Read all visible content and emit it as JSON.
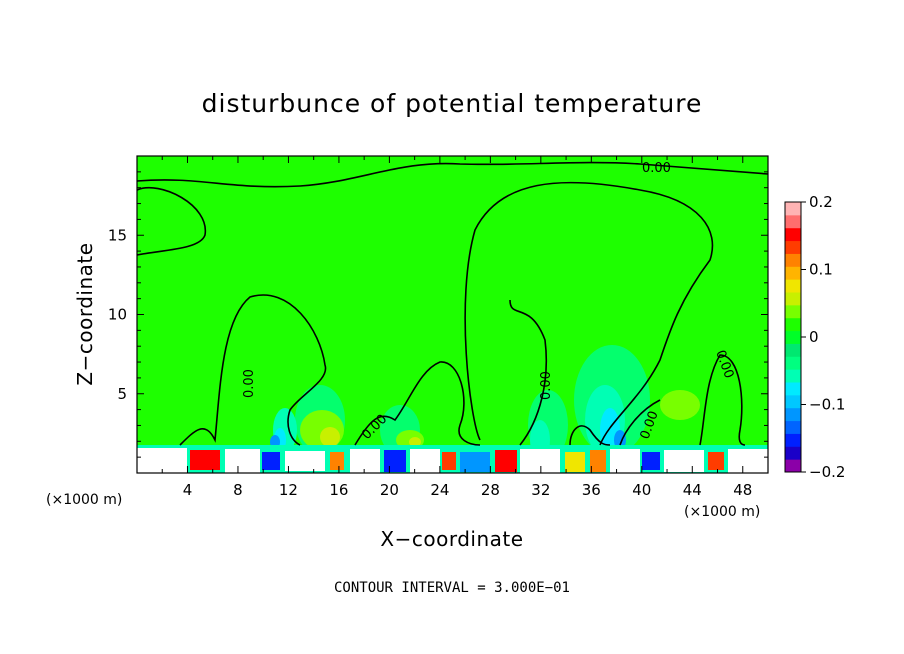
{
  "chart_data": {
    "type": "heatmap",
    "title": "disturbunce of potential temperature",
    "xlabel": "X−coordinate",
    "ylabel": "Z−coordinate",
    "x_unit_label": "(×1000 m)",
    "y_unit_label": "(×1000 m)",
    "xlim": [
      0,
      50
    ],
    "ylim": [
      0,
      20
    ],
    "x_ticks": [
      4,
      8,
      12,
      16,
      20,
      24,
      28,
      32,
      36,
      40,
      44,
      48
    ],
    "y_ticks": [
      5,
      10,
      15
    ],
    "colorbar": {
      "ticks": [
        {
          "value": 0.2,
          "label": "0.2"
        },
        {
          "value": 0.1,
          "label": "0.1"
        },
        {
          "value": 0,
          "label": "0"
        },
        {
          "value": -0.1,
          "label": "−0.1"
        },
        {
          "value": -0.2,
          "label": "−0.2"
        }
      ],
      "range": [
        -0.2,
        0.2
      ],
      "colors": [
        "#8b00a8",
        "#1a00c8",
        "#0020ff",
        "#0064ff",
        "#0096ff",
        "#00c8ff",
        "#00eaff",
        "#00ffb4",
        "#00ff80",
        "#00e870",
        "#00ff28",
        "#1eff00",
        "#78ff00",
        "#c8f000",
        "#f0e600",
        "#ffb400",
        "#ff8200",
        "#ff3c00",
        "#ff0000",
        "#ff6e6e",
        "#ffb4b4"
      ]
    },
    "background_value": 0,
    "contour_labels": [
      "0.00",
      "0.00",
      "0.00",
      "0.00",
      "0.00",
      "0.00"
    ],
    "footer": "CONTOUR INTERVAL = 3.000E−01"
  }
}
